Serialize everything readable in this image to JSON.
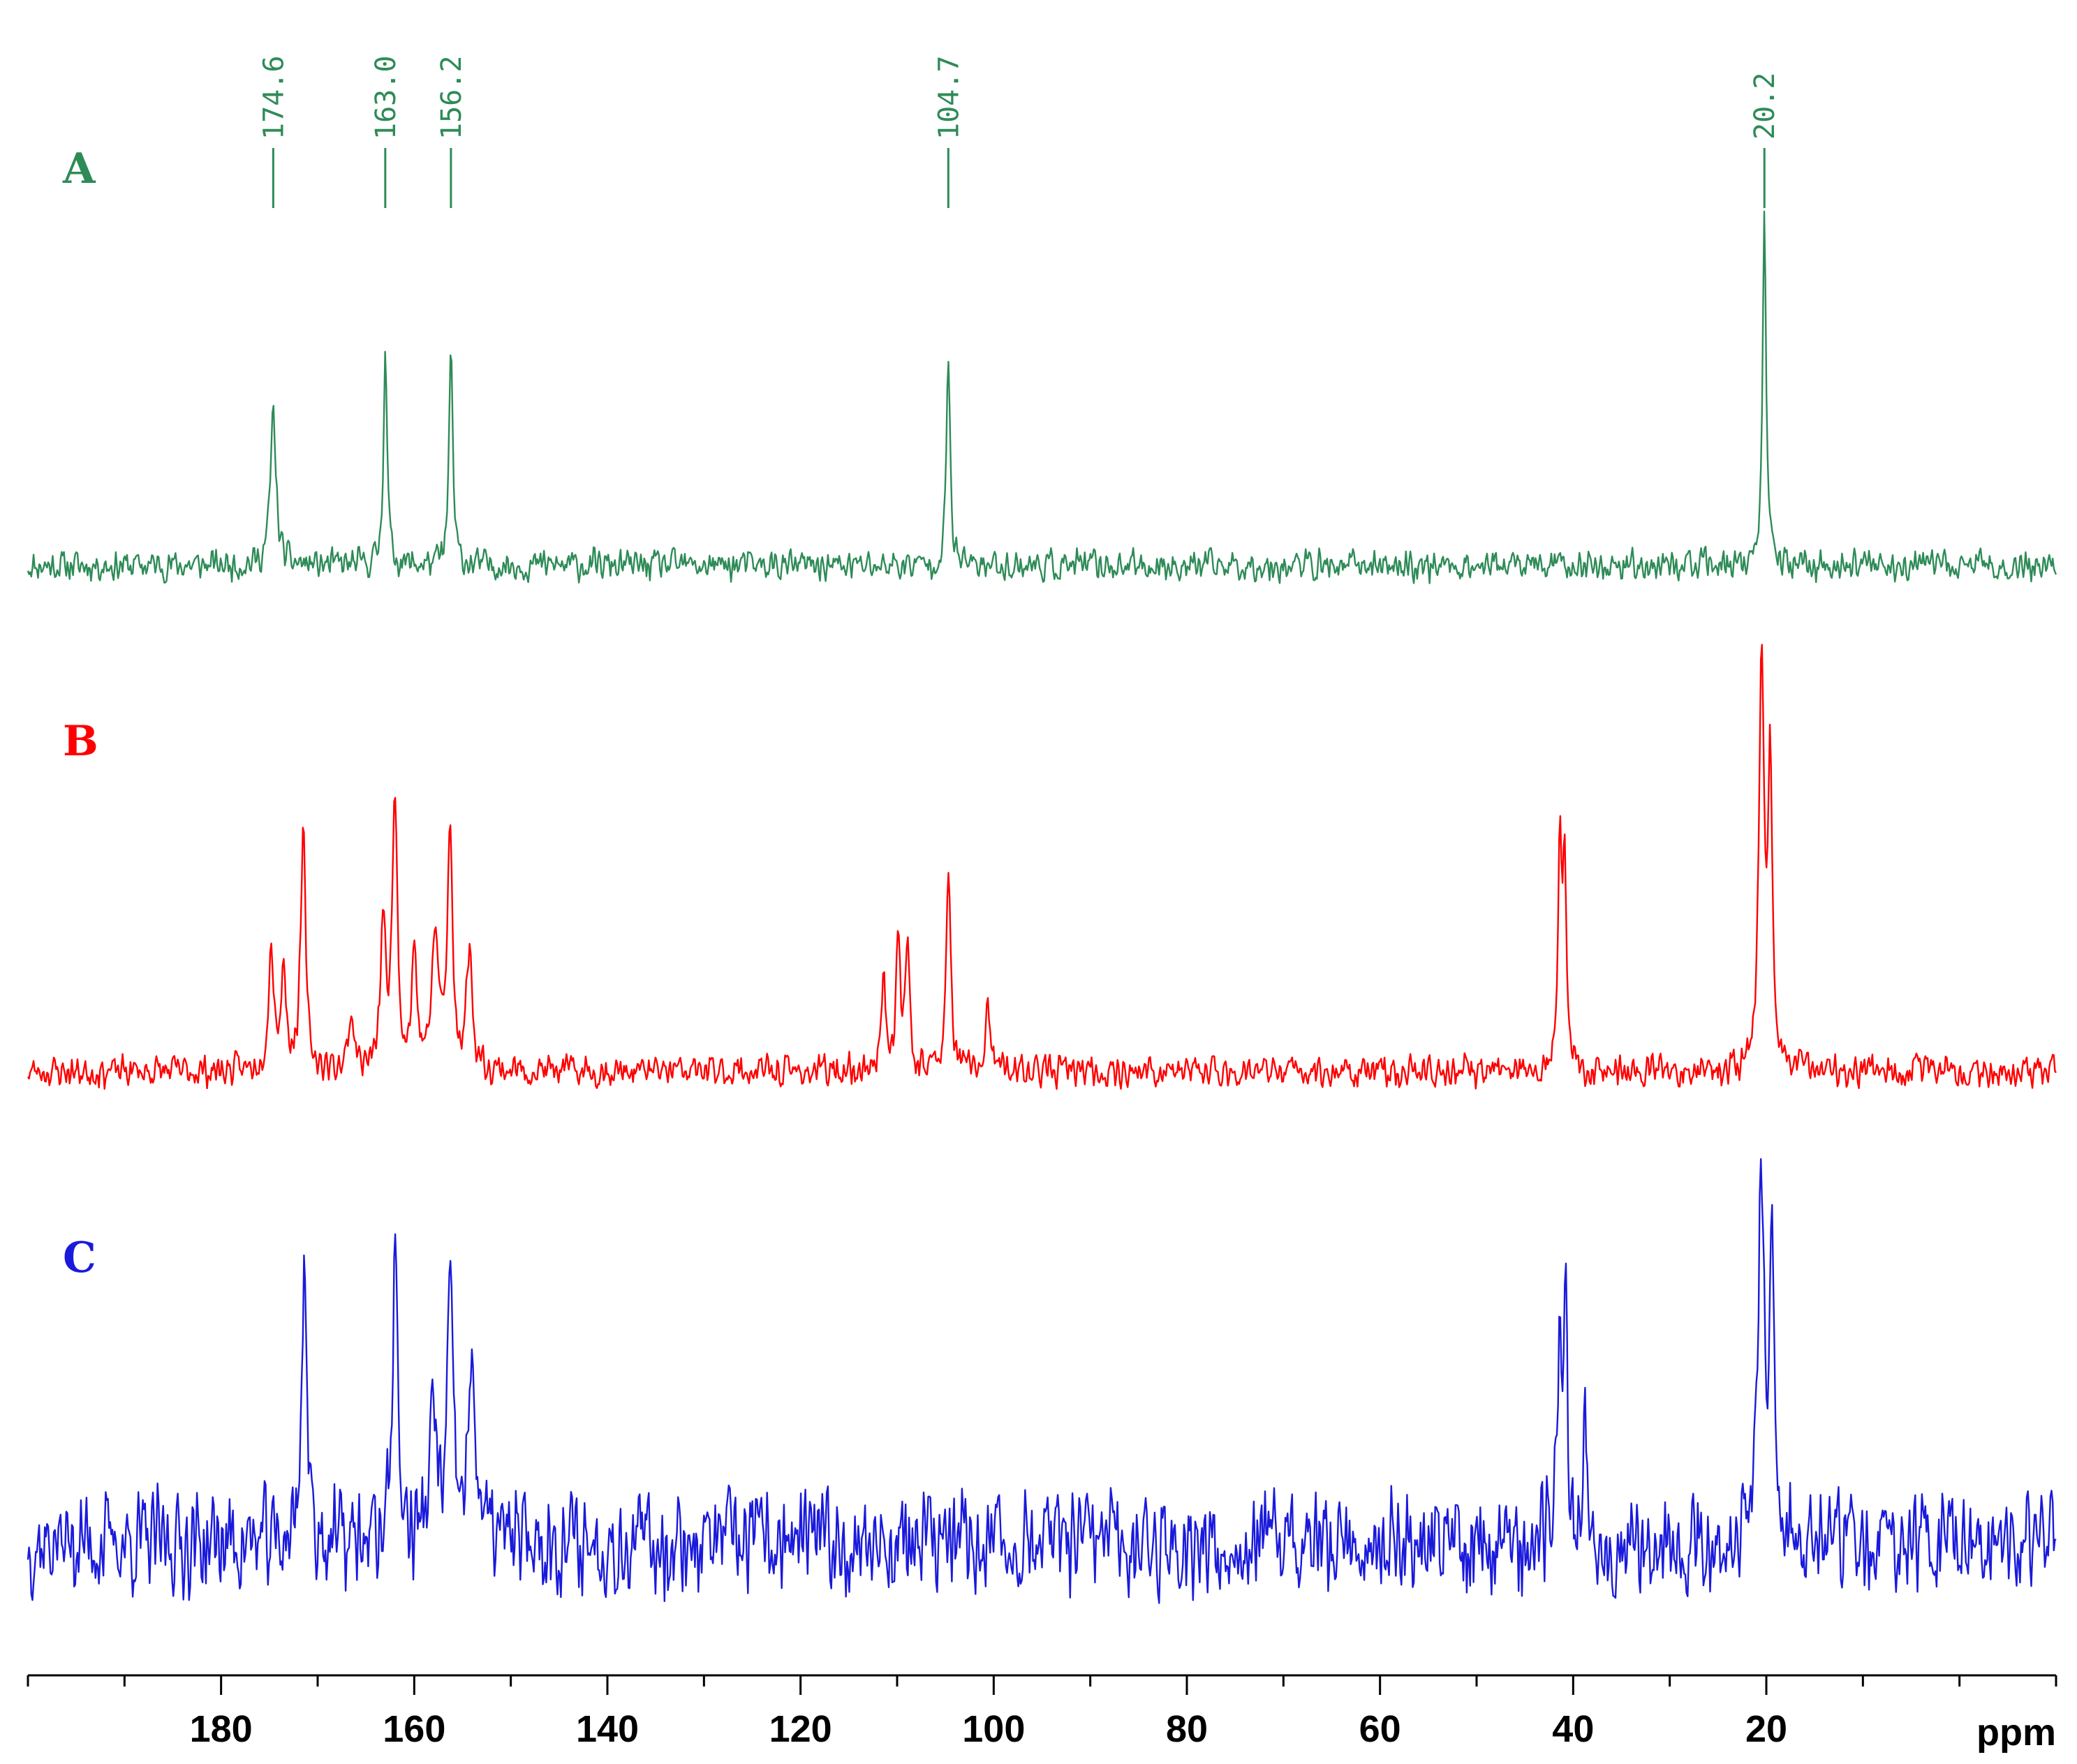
{
  "chart_data": {
    "type": "line",
    "title": "",
    "xlabel": "ppm",
    "ylabel": "",
    "x_axis": {
      "range": [
        -10,
        200
      ],
      "reversed": true,
      "major_ticks": [
        180,
        160,
        140,
        120,
        100,
        80,
        60,
        40,
        20
      ],
      "minor_step": 10
    },
    "grid": false,
    "series": [
      {
        "name": "A",
        "color": "#2e8b57",
        "noise": 0.055,
        "seed": 11,
        "peaks": [
          {
            "ppm": 174.6,
            "height": 0.45,
            "width": 0.35
          },
          {
            "ppm": 163.0,
            "height": 0.66,
            "width": 0.22
          },
          {
            "ppm": 156.2,
            "height": 0.66,
            "width": 0.22
          },
          {
            "ppm": 104.7,
            "height": 0.62,
            "width": 0.22
          },
          {
            "ppm": 20.2,
            "height": 1.0,
            "width": 0.22
          }
        ],
        "annotations": [
          {
            "ppm": 174.6,
            "text": "174.6"
          },
          {
            "ppm": 163.0,
            "text": "163.0"
          },
          {
            "ppm": 156.2,
            "text": "156.2"
          },
          {
            "ppm": 104.7,
            "text": "104.7"
          },
          {
            "ppm": 20.2,
            "text": "20.2"
          }
        ]
      },
      {
        "name": "B",
        "color": "#ff0000",
        "noise": 0.045,
        "seed": 23,
        "peaks": [
          {
            "ppm": 174.8,
            "height": 0.28,
            "width": 0.35
          },
          {
            "ppm": 173.5,
            "height": 0.23,
            "width": 0.3
          },
          {
            "ppm": 171.5,
            "height": 0.55,
            "width": 0.3
          },
          {
            "ppm": 166.5,
            "height": 0.13,
            "width": 0.35
          },
          {
            "ppm": 163.2,
            "height": 0.35,
            "width": 0.3
          },
          {
            "ppm": 162.0,
            "height": 0.65,
            "width": 0.3
          },
          {
            "ppm": 160.0,
            "height": 0.28,
            "width": 0.3
          },
          {
            "ppm": 157.8,
            "height": 0.3,
            "width": 0.45
          },
          {
            "ppm": 156.3,
            "height": 0.55,
            "width": 0.3
          },
          {
            "ppm": 154.3,
            "height": 0.28,
            "width": 0.35
          },
          {
            "ppm": 111.4,
            "height": 0.23,
            "width": 0.28
          },
          {
            "ppm": 109.9,
            "height": 0.3,
            "width": 0.25
          },
          {
            "ppm": 108.9,
            "height": 0.3,
            "width": 0.25
          },
          {
            "ppm": 104.7,
            "height": 0.45,
            "width": 0.28
          },
          {
            "ppm": 100.6,
            "height": 0.14,
            "width": 0.3
          },
          {
            "ppm": 41.4,
            "height": 0.52,
            "width": 0.22
          },
          {
            "ppm": 40.9,
            "height": 0.52,
            "width": 0.22
          },
          {
            "ppm": 20.5,
            "height": 1.0,
            "width": 0.3
          },
          {
            "ppm": 19.6,
            "height": 0.72,
            "width": 0.25
          }
        ]
      },
      {
        "name": "C",
        "color": "#1a1adc",
        "noise": 0.16,
        "seed": 37,
        "peaks": [
          {
            "ppm": 171.4,
            "height": 0.75,
            "width": 0.3
          },
          {
            "ppm": 162.0,
            "height": 0.8,
            "width": 0.3
          },
          {
            "ppm": 156.3,
            "height": 0.65,
            "width": 0.3
          },
          {
            "ppm": 154.0,
            "height": 0.4,
            "width": 0.55
          },
          {
            "ppm": 158.0,
            "height": 0.3,
            "width": 0.5
          },
          {
            "ppm": 41.4,
            "height": 0.63,
            "width": 0.22
          },
          {
            "ppm": 40.8,
            "height": 0.6,
            "width": 0.22
          },
          {
            "ppm": 38.8,
            "height": 0.3,
            "width": 0.25
          },
          {
            "ppm": 20.5,
            "height": 1.0,
            "width": 0.35
          },
          {
            "ppm": 19.4,
            "height": 0.7,
            "width": 0.25
          }
        ]
      }
    ]
  }
}
